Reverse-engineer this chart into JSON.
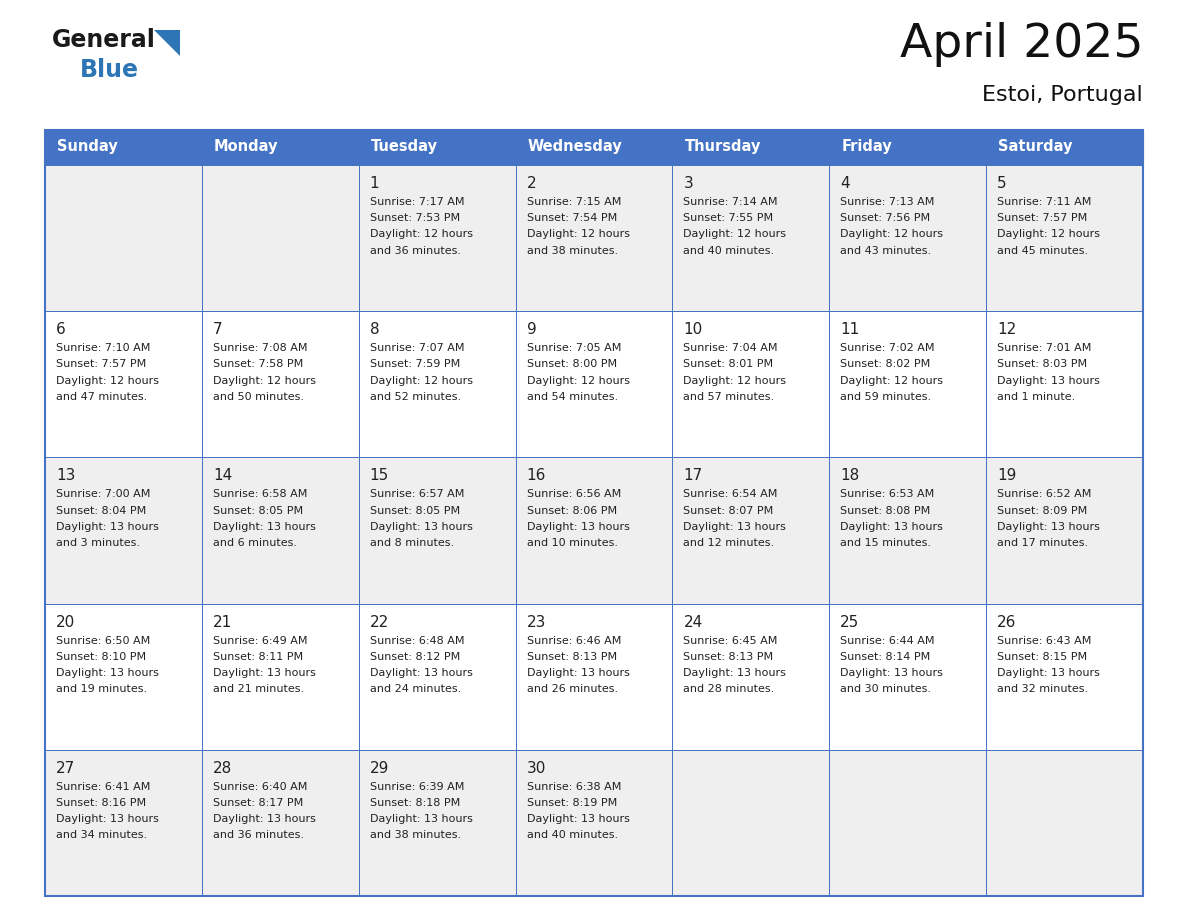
{
  "title": "April 2025",
  "subtitle": "Estoi, Portugal",
  "days_of_week": [
    "Sunday",
    "Monday",
    "Tuesday",
    "Wednesday",
    "Thursday",
    "Friday",
    "Saturday"
  ],
  "header_bg": "#4472C4",
  "header_text": "#FFFFFF",
  "cell_bg_gray": "#EFEFEF",
  "cell_bg_white": "#FFFFFF",
  "cell_border": "#4472C4",
  "day_number_color": "#222222",
  "text_color": "#222222",
  "title_color": "#111111",
  "logo_general_color": "#1a1a1a",
  "logo_blue_color": "#2E75B6",
  "weeks": [
    {
      "bg": "gray",
      "days": [
        {
          "date": null,
          "sunrise": null,
          "sunset": null,
          "daylight": null
        },
        {
          "date": null,
          "sunrise": null,
          "sunset": null,
          "daylight": null
        },
        {
          "date": 1,
          "sunrise": "7:17 AM",
          "sunset": "7:53 PM",
          "daylight": "12 hours\nand 36 minutes."
        },
        {
          "date": 2,
          "sunrise": "7:15 AM",
          "sunset": "7:54 PM",
          "daylight": "12 hours\nand 38 minutes."
        },
        {
          "date": 3,
          "sunrise": "7:14 AM",
          "sunset": "7:55 PM",
          "daylight": "12 hours\nand 40 minutes."
        },
        {
          "date": 4,
          "sunrise": "7:13 AM",
          "sunset": "7:56 PM",
          "daylight": "12 hours\nand 43 minutes."
        },
        {
          "date": 5,
          "sunrise": "7:11 AM",
          "sunset": "7:57 PM",
          "daylight": "12 hours\nand 45 minutes."
        }
      ]
    },
    {
      "bg": "white",
      "days": [
        {
          "date": 6,
          "sunrise": "7:10 AM",
          "sunset": "7:57 PM",
          "daylight": "12 hours\nand 47 minutes."
        },
        {
          "date": 7,
          "sunrise": "7:08 AM",
          "sunset": "7:58 PM",
          "daylight": "12 hours\nand 50 minutes."
        },
        {
          "date": 8,
          "sunrise": "7:07 AM",
          "sunset": "7:59 PM",
          "daylight": "12 hours\nand 52 minutes."
        },
        {
          "date": 9,
          "sunrise": "7:05 AM",
          "sunset": "8:00 PM",
          "daylight": "12 hours\nand 54 minutes."
        },
        {
          "date": 10,
          "sunrise": "7:04 AM",
          "sunset": "8:01 PM",
          "daylight": "12 hours\nand 57 minutes."
        },
        {
          "date": 11,
          "sunrise": "7:02 AM",
          "sunset": "8:02 PM",
          "daylight": "12 hours\nand 59 minutes."
        },
        {
          "date": 12,
          "sunrise": "7:01 AM",
          "sunset": "8:03 PM",
          "daylight": "13 hours\nand 1 minute."
        }
      ]
    },
    {
      "bg": "gray",
      "days": [
        {
          "date": 13,
          "sunrise": "7:00 AM",
          "sunset": "8:04 PM",
          "daylight": "13 hours\nand 3 minutes."
        },
        {
          "date": 14,
          "sunrise": "6:58 AM",
          "sunset": "8:05 PM",
          "daylight": "13 hours\nand 6 minutes."
        },
        {
          "date": 15,
          "sunrise": "6:57 AM",
          "sunset": "8:05 PM",
          "daylight": "13 hours\nand 8 minutes."
        },
        {
          "date": 16,
          "sunrise": "6:56 AM",
          "sunset": "8:06 PM",
          "daylight": "13 hours\nand 10 minutes."
        },
        {
          "date": 17,
          "sunrise": "6:54 AM",
          "sunset": "8:07 PM",
          "daylight": "13 hours\nand 12 minutes."
        },
        {
          "date": 18,
          "sunrise": "6:53 AM",
          "sunset": "8:08 PM",
          "daylight": "13 hours\nand 15 minutes."
        },
        {
          "date": 19,
          "sunrise": "6:52 AM",
          "sunset": "8:09 PM",
          "daylight": "13 hours\nand 17 minutes."
        }
      ]
    },
    {
      "bg": "white",
      "days": [
        {
          "date": 20,
          "sunrise": "6:50 AM",
          "sunset": "8:10 PM",
          "daylight": "13 hours\nand 19 minutes."
        },
        {
          "date": 21,
          "sunrise": "6:49 AM",
          "sunset": "8:11 PM",
          "daylight": "13 hours\nand 21 minutes."
        },
        {
          "date": 22,
          "sunrise": "6:48 AM",
          "sunset": "8:12 PM",
          "daylight": "13 hours\nand 24 minutes."
        },
        {
          "date": 23,
          "sunrise": "6:46 AM",
          "sunset": "8:13 PM",
          "daylight": "13 hours\nand 26 minutes."
        },
        {
          "date": 24,
          "sunrise": "6:45 AM",
          "sunset": "8:13 PM",
          "daylight": "13 hours\nand 28 minutes."
        },
        {
          "date": 25,
          "sunrise": "6:44 AM",
          "sunset": "8:14 PM",
          "daylight": "13 hours\nand 30 minutes."
        },
        {
          "date": 26,
          "sunrise": "6:43 AM",
          "sunset": "8:15 PM",
          "daylight": "13 hours\nand 32 minutes."
        }
      ]
    },
    {
      "bg": "gray",
      "days": [
        {
          "date": 27,
          "sunrise": "6:41 AM",
          "sunset": "8:16 PM",
          "daylight": "13 hours\nand 34 minutes."
        },
        {
          "date": 28,
          "sunrise": "6:40 AM",
          "sunset": "8:17 PM",
          "daylight": "13 hours\nand 36 minutes."
        },
        {
          "date": 29,
          "sunrise": "6:39 AM",
          "sunset": "8:18 PM",
          "daylight": "13 hours\nand 38 minutes."
        },
        {
          "date": 30,
          "sunrise": "6:38 AM",
          "sunset": "8:19 PM",
          "daylight": "13 hours\nand 40 minutes."
        },
        {
          "date": null,
          "sunrise": null,
          "sunset": null,
          "daylight": null
        },
        {
          "date": null,
          "sunrise": null,
          "sunset": null,
          "daylight": null
        },
        {
          "date": null,
          "sunrise": null,
          "sunset": null,
          "daylight": null
        }
      ]
    }
  ]
}
